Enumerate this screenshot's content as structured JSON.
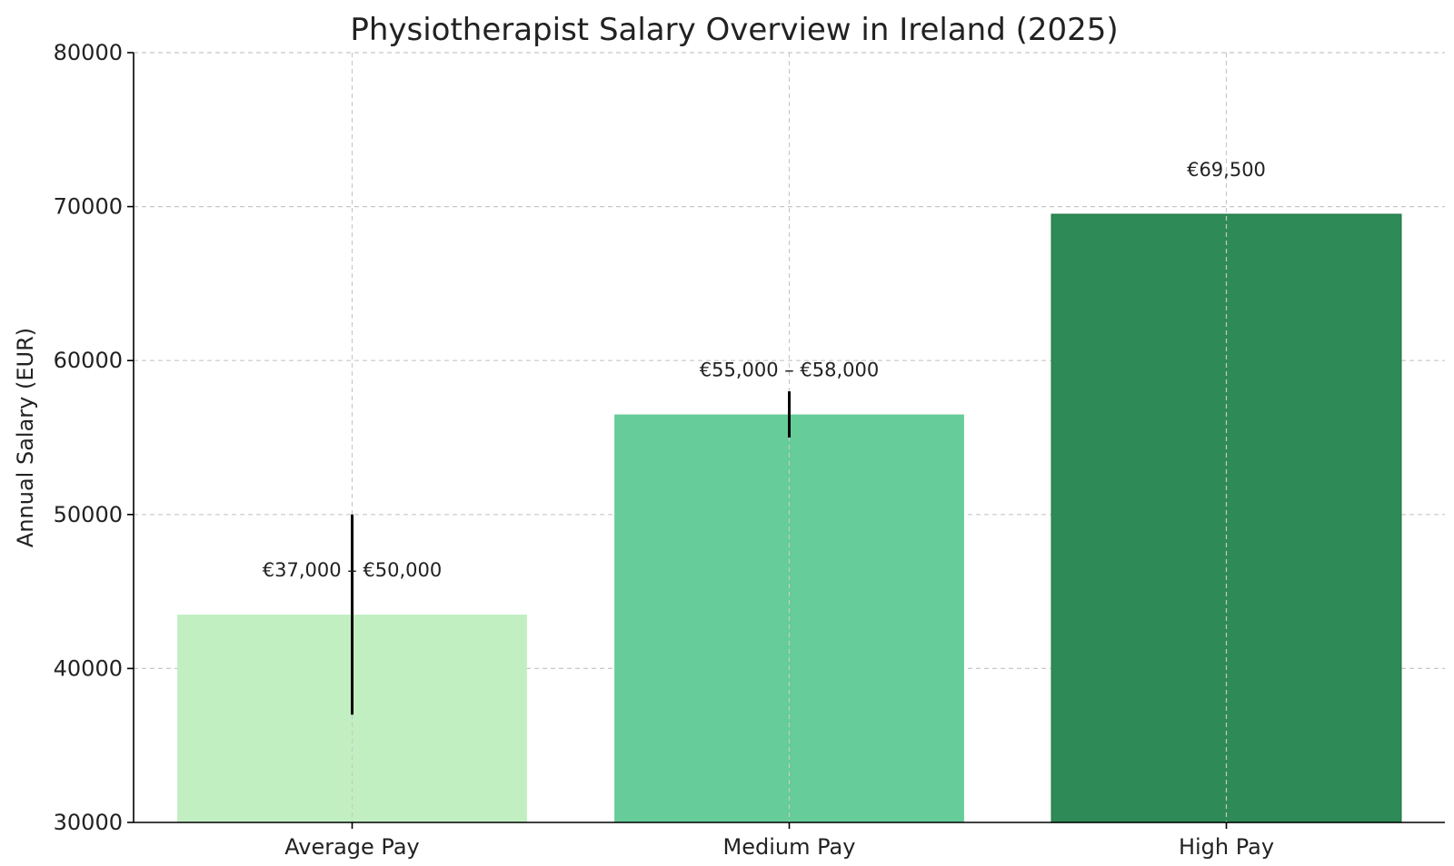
{
  "chart_data": {
    "type": "bar",
    "title": "Physiotherapist Salary Overview in Ireland (2025)",
    "xlabel": "",
    "ylabel": "Annual Salary (EUR)",
    "ylim": [
      30000,
      80000
    ],
    "yticks": [
      "30000",
      "40000",
      "50000",
      "60000",
      "70000",
      "80000"
    ],
    "grid": true,
    "categories": [
      "Average Pay",
      "Medium Pay",
      "High Pay"
    ],
    "values": [
      43500,
      56500,
      69500
    ],
    "error_ranges": [
      [
        37000,
        50000
      ],
      [
        55000,
        58000
      ],
      null
    ],
    "data_labels": [
      "€37,000 – €50,000",
      "€55,000 – €58,000",
      "€69,500"
    ],
    "colors": [
      "#c2efc2",
      "#66cc99",
      "#2e8b57"
    ]
  }
}
